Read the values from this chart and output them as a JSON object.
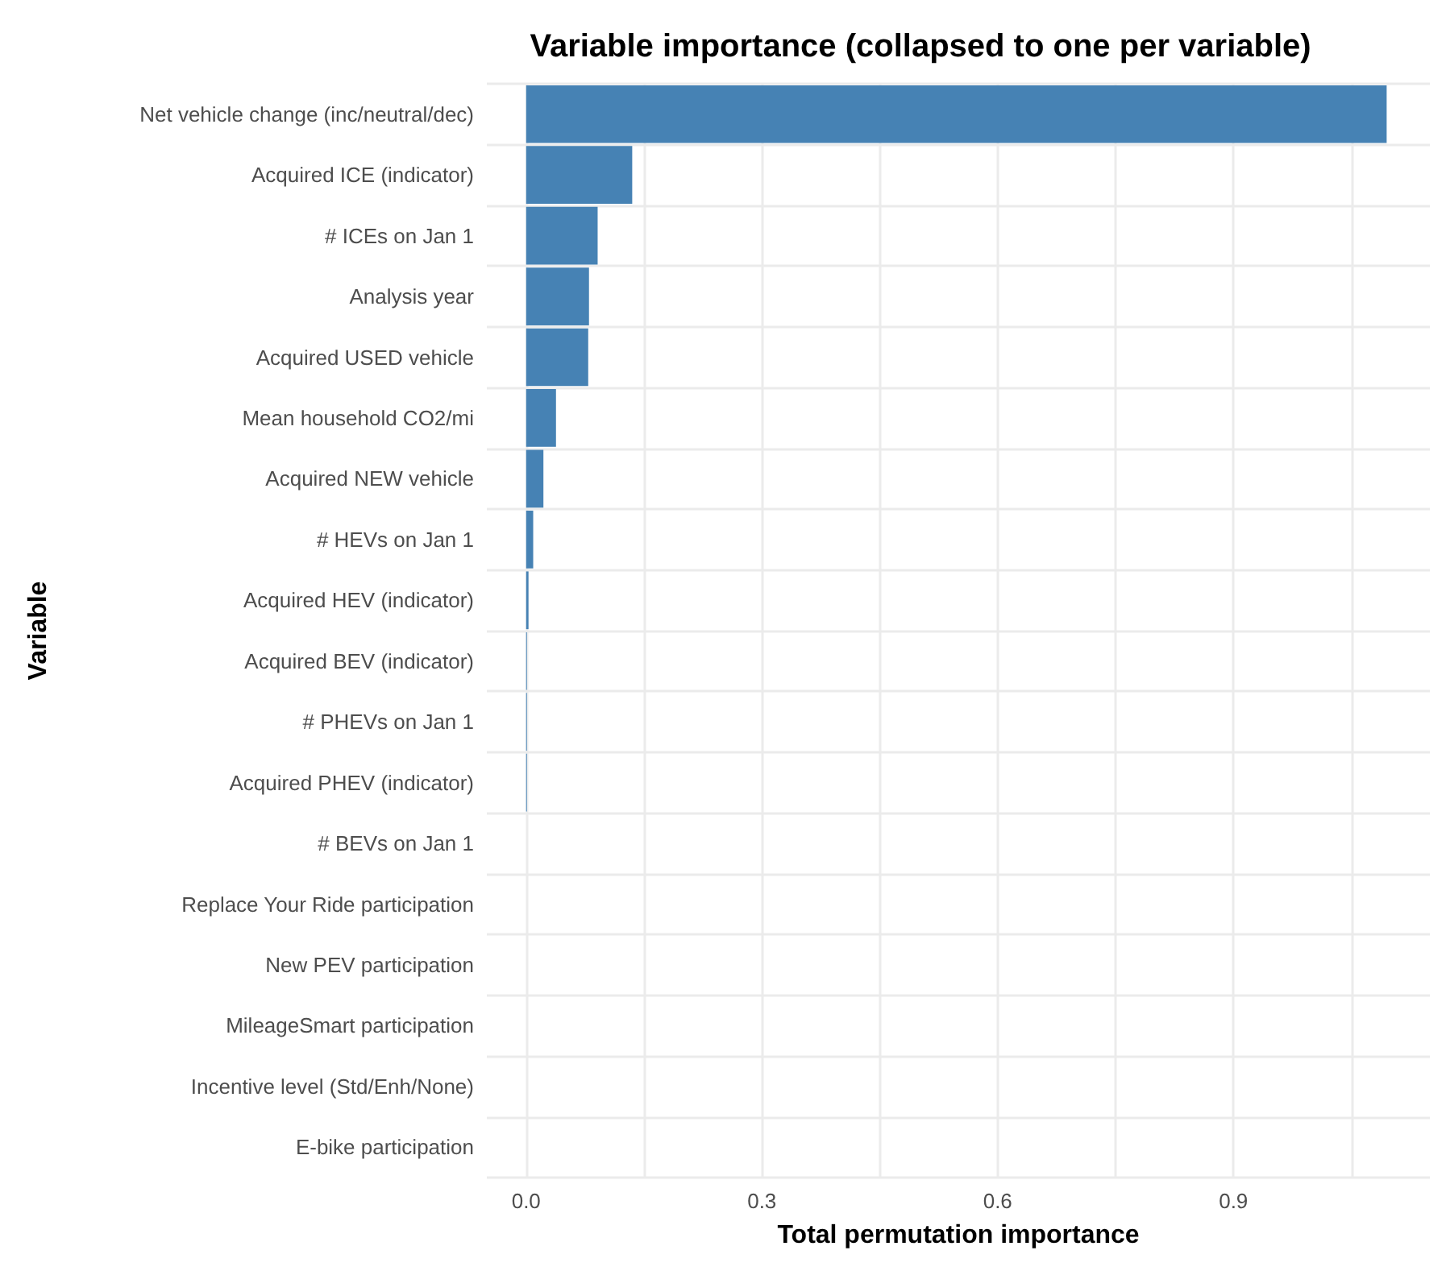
{
  "chart_data": {
    "type": "bar",
    "orientation": "horizontal",
    "title": "Variable importance (collapsed to one per variable)",
    "xlabel": "Total permutation importance",
    "ylabel": "Variable",
    "categories": [
      "Net vehicle change (inc/neutral/dec)",
      "Acquired ICE (indicator)",
      "# ICEs on Jan 1",
      "Analysis year",
      "Acquired USED vehicle",
      "Mean household CO2/mi",
      "Acquired NEW vehicle",
      "# HEVs on Jan 1",
      "Acquired HEV (indicator)",
      "Acquired BEV (indicator)",
      "# PHEVs on Jan 1",
      "Acquired PHEV (indicator)",
      "# BEVs on Jan 1",
      "Replace Your Ride participation",
      "New PEV participation",
      "MileageSmart participation",
      "Incentive level (Std/Enh/None)",
      "E-bike participation"
    ],
    "values": [
      1.095,
      0.135,
      0.091,
      0.08,
      0.079,
      0.038,
      0.022,
      0.009,
      0.003,
      0.001,
      0.001,
      0.001,
      0,
      0,
      0,
      0,
      0,
      0
    ],
    "color": "#4682b4",
    "xlim": [
      -0.05,
      1.15
    ],
    "xticks": [
      {
        "value": 0,
        "label": "0.0"
      },
      {
        "value": 0.15,
        "label": null
      },
      0.3,
      {
        "value": 0.45,
        "label": null
      },
      0.6,
      {
        "value": 0.75,
        "label": null
      },
      0.9,
      {
        "value": 1.05,
        "label": null
      }
    ],
    "grid": true
  }
}
